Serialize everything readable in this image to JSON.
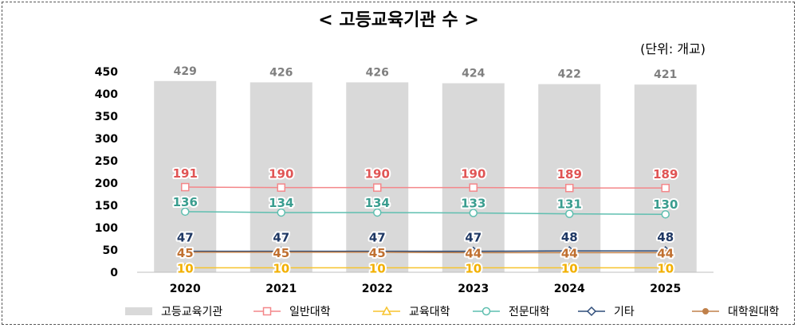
{
  "chart_data": {
    "type": "bar",
    "title": "< 고등교육기관 수 >",
    "unit_note": "(단위: 개교)",
    "categories": [
      "2020",
      "2021",
      "2022",
      "2023",
      "2024",
      "2025"
    ],
    "ylim": [
      0,
      450
    ],
    "yticks": [
      0,
      50,
      100,
      150,
      200,
      250,
      300,
      350,
      400,
      450
    ],
    "grid": false,
    "legend_position": "bottom",
    "bars": {
      "name": "고등교육기관",
      "color": "#d9d9d9",
      "label_color": "#7f7f7f",
      "values": [
        429,
        426,
        426,
        424,
        422,
        421
      ]
    },
    "series": [
      {
        "name": "일반대학",
        "type": "line",
        "marker": "square",
        "color": "#f4878a",
        "label_color": "#e05555",
        "values": [
          191,
          190,
          190,
          190,
          189,
          189
        ]
      },
      {
        "name": "교육대학",
        "type": "line",
        "marker": "triangle",
        "color": "#f7c32e",
        "label_color": "#f2b000",
        "values": [
          10,
          10,
          10,
          10,
          10,
          10
        ]
      },
      {
        "name": "전문대학",
        "type": "line",
        "marker": "circle",
        "color": "#5fbfb0",
        "label_color": "#3a9d8f",
        "values": [
          136,
          134,
          134,
          133,
          131,
          130
        ]
      },
      {
        "name": "기타",
        "type": "line",
        "marker": "diamond",
        "color": "#2f4d7a",
        "label_color": "#1f3864",
        "values": [
          47,
          47,
          47,
          47,
          48,
          48
        ]
      },
      {
        "name": "대학원대학",
        "type": "line",
        "marker": "dot",
        "color": "#c0804a",
        "label_color": "#c07030",
        "values": [
          45,
          45,
          45,
          44,
          44,
          44
        ]
      }
    ]
  }
}
